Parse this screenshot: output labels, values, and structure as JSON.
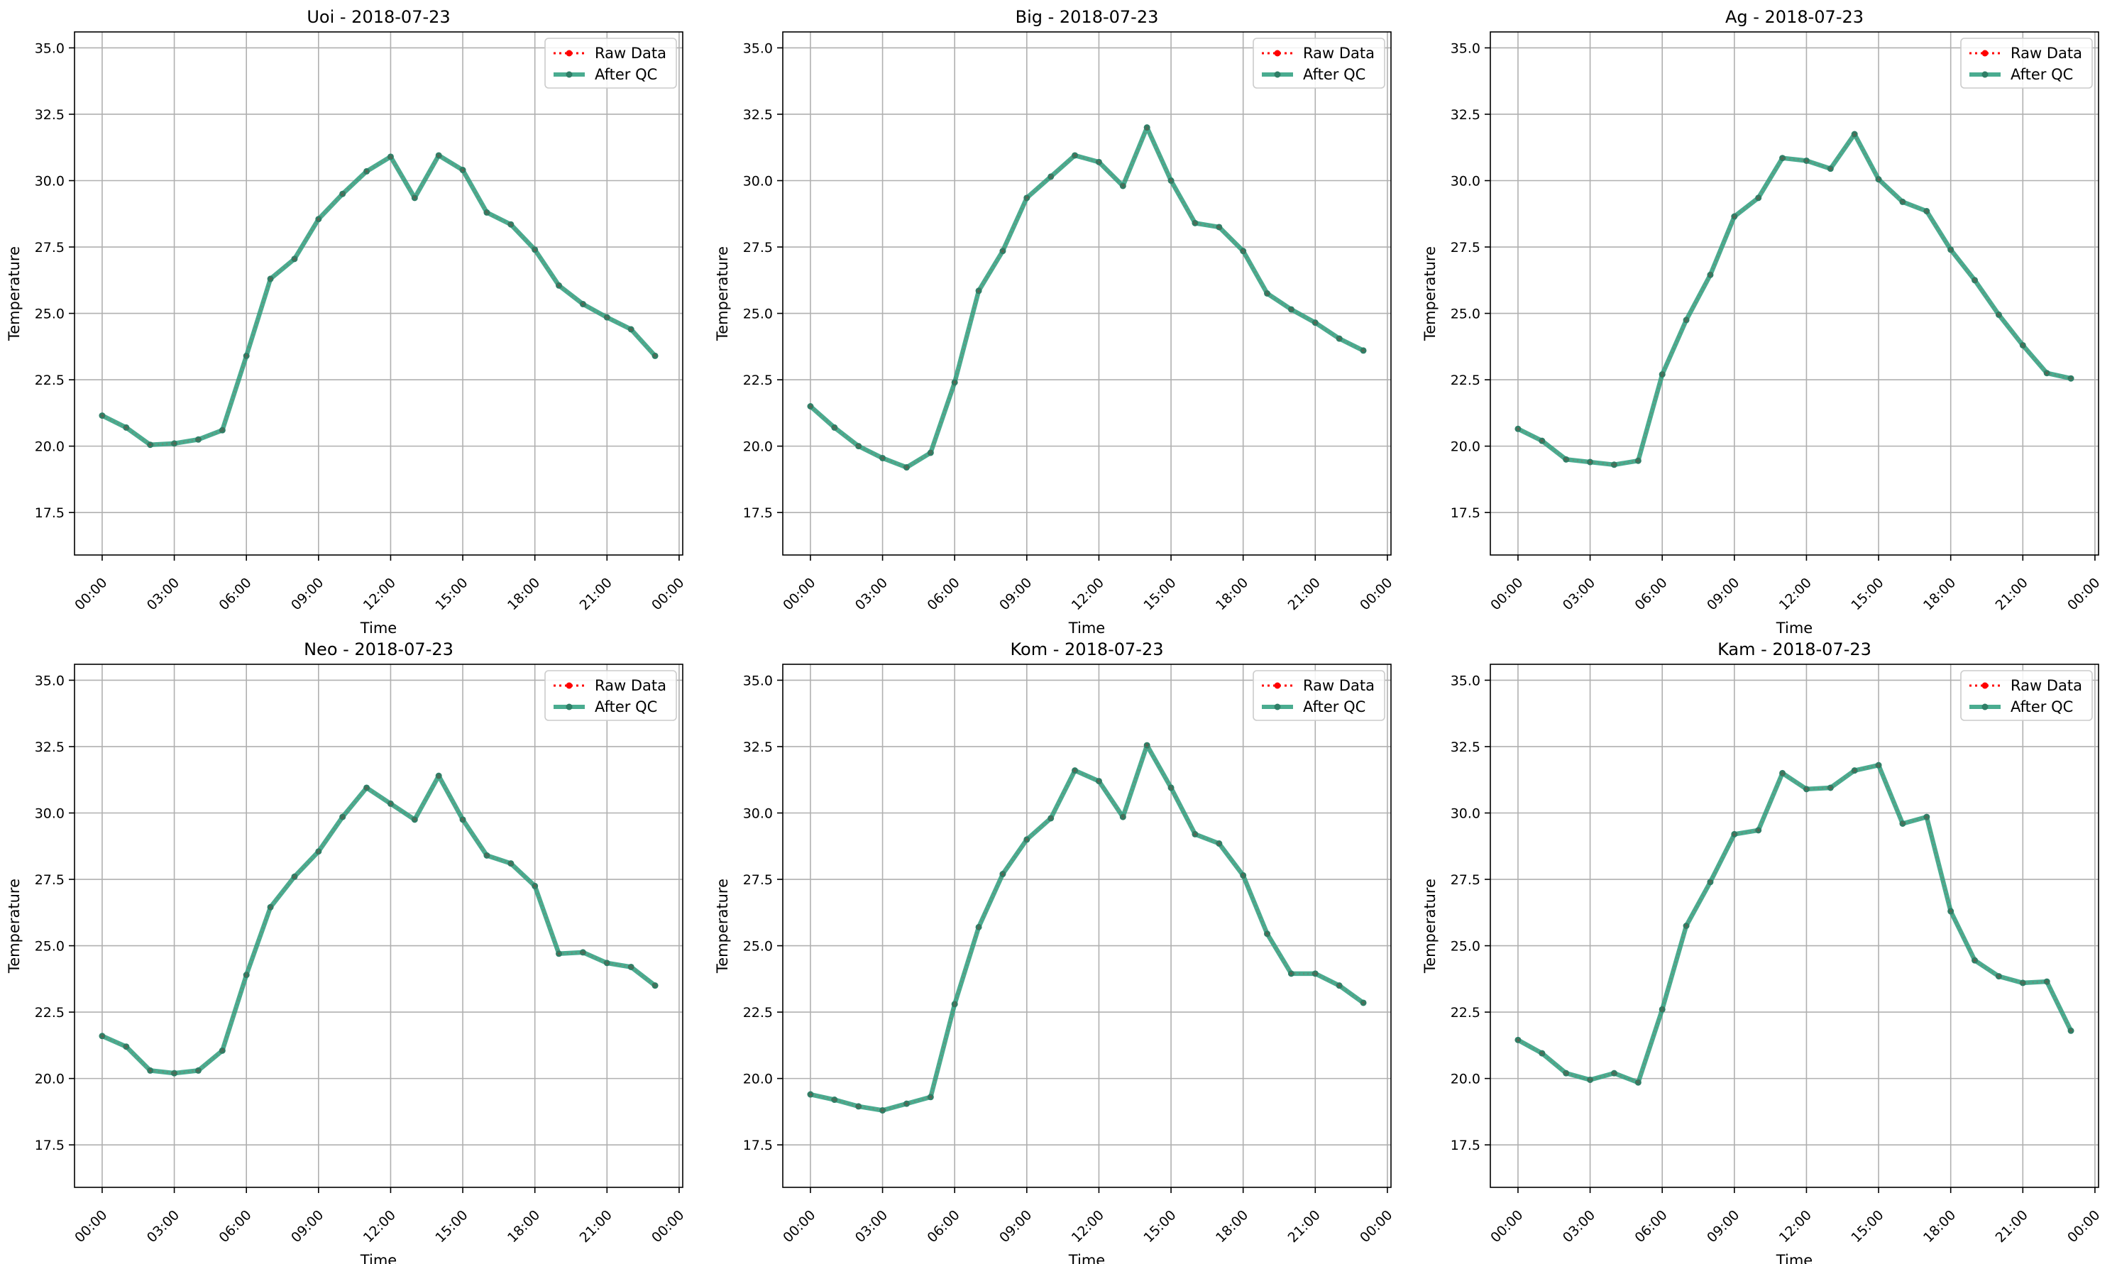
{
  "colors": {
    "raw": "#ff0000",
    "qc": "#2a9d7c",
    "qc_marker": "#2f7f67"
  },
  "chart_data": [
    {
      "type": "line",
      "title": "Uoi - 2018-07-23",
      "xlabel": "Time",
      "ylabel": "Temperature",
      "x_ticks": [
        "00:00",
        "03:00",
        "06:00",
        "09:00",
        "12:00",
        "15:00",
        "18:00",
        "21:00",
        "00:00"
      ],
      "y_ticks": [
        "17.5",
        "20.0",
        "22.5",
        "25.0",
        "27.5",
        "30.0",
        "32.5",
        "35.0"
      ],
      "xlim_hours": [
        -1.15,
        24.15
      ],
      "ylim": [
        15.9,
        35.6
      ],
      "grid": true,
      "legend_position": "top-right",
      "series": [
        {
          "name": "Raw Data",
          "values": [
            21.15,
            20.7,
            20.05,
            20.1,
            20.25,
            20.6,
            23.4,
            26.3,
            27.05,
            28.55,
            29.5,
            30.35,
            30.9,
            29.35,
            30.95,
            30.4,
            28.8,
            28.35,
            27.4,
            26.05,
            25.35,
            24.85,
            24.4,
            23.4
          ]
        },
        {
          "name": "After QC",
          "values": [
            21.15,
            20.7,
            20.05,
            20.1,
            20.25,
            20.6,
            23.4,
            26.3,
            27.05,
            28.55,
            29.5,
            30.35,
            30.9,
            29.35,
            30.95,
            30.4,
            28.8,
            28.35,
            27.4,
            26.05,
            25.35,
            24.85,
            24.4,
            23.4
          ]
        }
      ]
    },
    {
      "type": "line",
      "title": "Big - 2018-07-23",
      "xlabel": "Time",
      "ylabel": "Temperature",
      "x_ticks": [
        "00:00",
        "03:00",
        "06:00",
        "09:00",
        "12:00",
        "15:00",
        "18:00",
        "21:00",
        "00:00"
      ],
      "y_ticks": [
        "17.5",
        "20.0",
        "22.5",
        "25.0",
        "27.5",
        "30.0",
        "32.5",
        "35.0"
      ],
      "xlim_hours": [
        -1.15,
        24.15
      ],
      "ylim": [
        15.9,
        35.6
      ],
      "grid": true,
      "legend_position": "top-right",
      "series": [
        {
          "name": "Raw Data",
          "values": [
            21.5,
            20.7,
            20.0,
            19.55,
            19.2,
            19.75,
            22.4,
            25.85,
            27.35,
            29.35,
            30.15,
            30.95,
            30.7,
            29.8,
            32.0,
            30.0,
            28.4,
            28.25,
            27.35,
            25.75,
            25.15,
            24.65,
            24.05,
            23.6
          ]
        },
        {
          "name": "After QC",
          "values": [
            21.5,
            20.7,
            20.0,
            19.55,
            19.2,
            19.75,
            22.4,
            25.85,
            27.35,
            29.35,
            30.15,
            30.95,
            30.7,
            29.8,
            32.0,
            30.0,
            28.4,
            28.25,
            27.35,
            25.75,
            25.15,
            24.65,
            24.05,
            23.6
          ]
        }
      ]
    },
    {
      "type": "line",
      "title": "Ag - 2018-07-23",
      "xlabel": "Time",
      "ylabel": "Temperature",
      "x_ticks": [
        "00:00",
        "03:00",
        "06:00",
        "09:00",
        "12:00",
        "15:00",
        "18:00",
        "21:00",
        "00:00"
      ],
      "y_ticks": [
        "17.5",
        "20.0",
        "22.5",
        "25.0",
        "27.5",
        "30.0",
        "32.5",
        "35.0"
      ],
      "xlim_hours": [
        -1.15,
        24.15
      ],
      "ylim": [
        15.9,
        35.6
      ],
      "grid": true,
      "legend_position": "top-right",
      "series": [
        {
          "name": "Raw Data",
          "values": [
            20.65,
            20.2,
            19.5,
            19.4,
            19.3,
            19.45,
            22.7,
            24.75,
            26.45,
            28.65,
            29.35,
            30.85,
            30.75,
            30.45,
            31.75,
            30.05,
            29.2,
            28.85,
            27.4,
            26.25,
            24.95,
            23.8,
            22.75,
            22.55
          ]
        },
        {
          "name": "After QC",
          "values": [
            20.65,
            20.2,
            19.5,
            19.4,
            19.3,
            19.45,
            22.7,
            24.75,
            26.45,
            28.65,
            29.35,
            30.85,
            30.75,
            30.45,
            31.75,
            30.05,
            29.2,
            28.85,
            27.4,
            26.25,
            24.95,
            23.8,
            22.75,
            22.55
          ]
        }
      ]
    },
    {
      "type": "line",
      "title": "Neo - 2018-07-23",
      "xlabel": "Time",
      "ylabel": "Temperature",
      "x_ticks": [
        "00:00",
        "03:00",
        "06:00",
        "09:00",
        "12:00",
        "15:00",
        "18:00",
        "21:00",
        "00:00"
      ],
      "y_ticks": [
        "17.5",
        "20.0",
        "22.5",
        "25.0",
        "27.5",
        "30.0",
        "32.5",
        "35.0"
      ],
      "xlim_hours": [
        -1.15,
        24.15
      ],
      "ylim": [
        15.9,
        35.6
      ],
      "grid": true,
      "legend_position": "top-right",
      "series": [
        {
          "name": "Raw Data",
          "values": [
            21.6,
            21.2,
            20.3,
            20.2,
            20.3,
            21.05,
            23.9,
            26.45,
            27.6,
            28.55,
            29.85,
            30.95,
            30.35,
            29.75,
            31.4,
            29.75,
            28.4,
            28.1,
            27.25,
            24.7,
            24.75,
            24.35,
            24.2,
            23.5
          ]
        },
        {
          "name": "After QC",
          "values": [
            21.6,
            21.2,
            20.3,
            20.2,
            20.3,
            21.05,
            23.9,
            26.45,
            27.6,
            28.55,
            29.85,
            30.95,
            30.35,
            29.75,
            31.4,
            29.75,
            28.4,
            28.1,
            27.25,
            24.7,
            24.75,
            24.35,
            24.2,
            23.5
          ]
        }
      ]
    },
    {
      "type": "line",
      "title": "Kom - 2018-07-23",
      "xlabel": "Time",
      "ylabel": "Temperature",
      "x_ticks": [
        "00:00",
        "03:00",
        "06:00",
        "09:00",
        "12:00",
        "15:00",
        "18:00",
        "21:00",
        "00:00"
      ],
      "y_ticks": [
        "17.5",
        "20.0",
        "22.5",
        "25.0",
        "27.5",
        "30.0",
        "32.5",
        "35.0"
      ],
      "xlim_hours": [
        -1.15,
        24.15
      ],
      "ylim": [
        15.9,
        35.6
      ],
      "grid": true,
      "legend_position": "top-right",
      "series": [
        {
          "name": "Raw Data",
          "values": [
            19.4,
            19.2,
            18.95,
            18.8,
            19.05,
            19.3,
            22.8,
            25.7,
            27.7,
            29.0,
            29.8,
            31.6,
            31.2,
            29.85,
            32.55,
            30.95,
            29.2,
            28.85,
            27.65,
            25.45,
            23.95,
            23.95,
            23.5,
            22.85
          ]
        },
        {
          "name": "After QC",
          "values": [
            19.4,
            19.2,
            18.95,
            18.8,
            19.05,
            19.3,
            22.8,
            25.7,
            27.7,
            29.0,
            29.8,
            31.6,
            31.2,
            29.85,
            32.55,
            30.95,
            29.2,
            28.85,
            27.65,
            25.45,
            23.95,
            23.95,
            23.5,
            22.85
          ]
        }
      ]
    },
    {
      "type": "line",
      "title": "Kam - 2018-07-23",
      "xlabel": "Time",
      "ylabel": "Temperature",
      "x_ticks": [
        "00:00",
        "03:00",
        "06:00",
        "09:00",
        "12:00",
        "15:00",
        "18:00",
        "21:00",
        "00:00"
      ],
      "y_ticks": [
        "17.5",
        "20.0",
        "22.5",
        "25.0",
        "27.5",
        "30.0",
        "32.5",
        "35.0"
      ],
      "xlim_hours": [
        -1.15,
        24.15
      ],
      "ylim": [
        15.9,
        35.6
      ],
      "grid": true,
      "legend_position": "top-right",
      "series": [
        {
          "name": "Raw Data",
          "values": [
            21.45,
            20.95,
            20.2,
            19.95,
            20.2,
            19.85,
            22.6,
            25.75,
            27.4,
            29.2,
            29.35,
            31.5,
            30.9,
            30.95,
            31.6,
            31.8,
            29.6,
            29.85,
            26.3,
            24.45,
            23.85,
            23.6,
            23.65,
            21.8
          ]
        },
        {
          "name": "After QC",
          "values": [
            21.45,
            20.95,
            20.2,
            19.95,
            20.2,
            19.85,
            22.6,
            25.75,
            27.4,
            29.2,
            29.35,
            31.5,
            30.9,
            30.95,
            31.6,
            31.8,
            29.6,
            29.85,
            26.3,
            24.45,
            23.85,
            23.6,
            23.65,
            21.8
          ]
        }
      ]
    }
  ]
}
